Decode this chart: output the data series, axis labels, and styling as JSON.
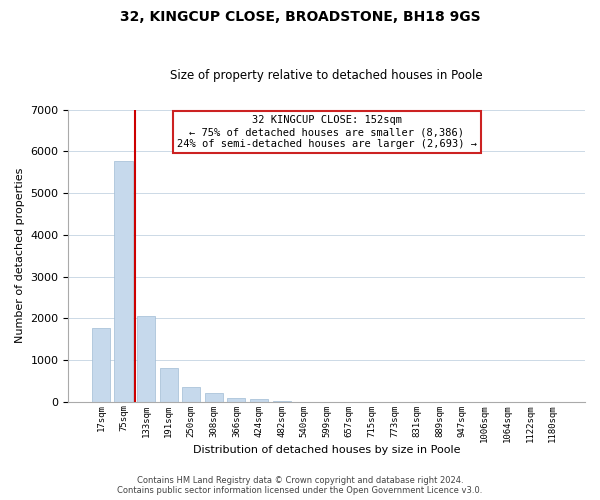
{
  "title": "32, KINGCUP CLOSE, BROADSTONE, BH18 9GS",
  "subtitle": "Size of property relative to detached houses in Poole",
  "xlabel": "Distribution of detached houses by size in Poole",
  "ylabel": "Number of detached properties",
  "bar_labels": [
    "17sqm",
    "75sqm",
    "133sqm",
    "191sqm",
    "250sqm",
    "308sqm",
    "366sqm",
    "424sqm",
    "482sqm",
    "540sqm",
    "599sqm",
    "657sqm",
    "715sqm",
    "773sqm",
    "831sqm",
    "889sqm",
    "947sqm",
    "1006sqm",
    "1064sqm",
    "1122sqm",
    "1180sqm"
  ],
  "bar_values": [
    1780,
    5760,
    2050,
    820,
    360,
    220,
    100,
    60,
    20,
    0,
    0,
    0,
    0,
    0,
    0,
    0,
    0,
    0,
    0,
    0,
    0
  ],
  "bar_color": "#c6d9ec",
  "bar_edge_color": "#a0bcd4",
  "vline_x": 1.5,
  "vline_color": "#cc0000",
  "ylim": [
    0,
    7000
  ],
  "yticks": [
    0,
    1000,
    2000,
    3000,
    4000,
    5000,
    6000,
    7000
  ],
  "annotation_title": "32 KINGCUP CLOSE: 152sqm",
  "annotation_line1": "← 75% of detached houses are smaller (8,386)",
  "annotation_line2": "24% of semi-detached houses are larger (2,693) →",
  "footer_line1": "Contains HM Land Registry data © Crown copyright and database right 2024.",
  "footer_line2": "Contains public sector information licensed under the Open Government Licence v3.0.",
  "background_color": "#ffffff",
  "grid_color": "#ccd9e6"
}
